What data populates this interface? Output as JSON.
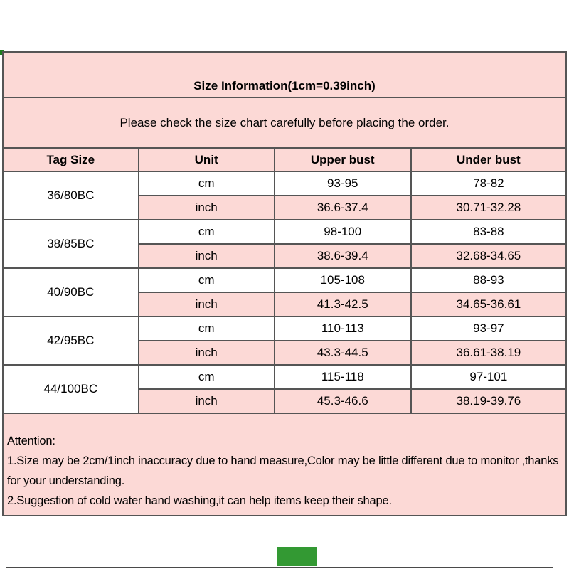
{
  "colors": {
    "panel_pink": "#fcd9d6",
    "border_gray": "#555555",
    "logo_green": "#339933",
    "corner_green": "#1e7d1e",
    "bottom_bar_gray": "#4a4a4a"
  },
  "header": {
    "title": "Size Information(1cm=0.39inch)",
    "subtitle": "Please check the size chart carefully before placing the order."
  },
  "table": {
    "columns": [
      "Tag Size",
      "Unit",
      "Upper bust",
      "Under bust"
    ],
    "unit_cm": "cm",
    "unit_inch": "inch",
    "rows": [
      {
        "tag": "36/80BC",
        "cm_upper": "93-95",
        "cm_under": "78-82",
        "inch_upper": "36.6-37.4",
        "inch_under": "30.71-32.28"
      },
      {
        "tag": "38/85BC",
        "cm_upper": "98-100",
        "cm_under": "83-88",
        "inch_upper": "38.6-39.4",
        "inch_under": "32.68-34.65"
      },
      {
        "tag": "40/90BC",
        "cm_upper": "105-108",
        "cm_under": "88-93",
        "inch_upper": "41.3-42.5",
        "inch_under": "34.65-36.61"
      },
      {
        "tag": "42/95BC",
        "cm_upper": "110-113",
        "cm_under": "93-97",
        "inch_upper": "43.3-44.5",
        "inch_under": "36.61-38.19"
      },
      {
        "tag": "44/100BC",
        "cm_upper": "115-118",
        "cm_under": "97-101",
        "inch_upper": "45.3-46.6",
        "inch_under": "38.19-39.76"
      }
    ]
  },
  "attention": {
    "heading": "Attention:",
    "note1": "1.Size may be 2cm/1inch inaccuracy due to hand measure,Color may be little different due to monitor ,thanks for your understanding.",
    "note2": "2.Suggestion of cold water hand washing,it can help items keep their shape."
  }
}
